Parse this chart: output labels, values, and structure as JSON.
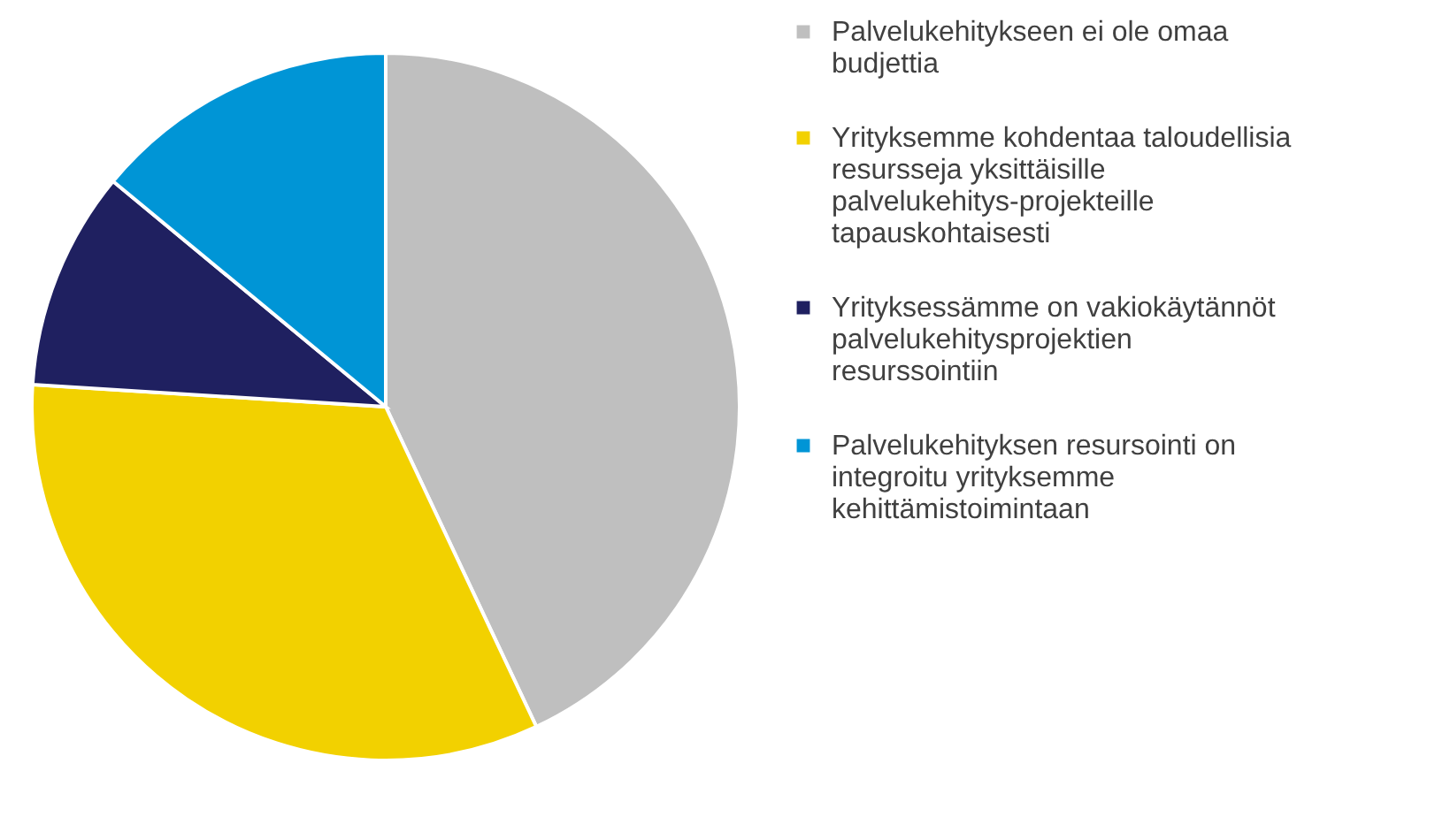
{
  "chart_data": {
    "type": "pie",
    "categories": [
      "Palvelukehitykseen ei ole omaa budjettia",
      "Yrityksemme kohdentaa taloudellisia resursseja yksittäisille palvelukehitys-projekteille tapauskohtaisesti",
      "Yrityksessämme on vakiokäytännöt palvelukehitysprojektien resurssointiin",
      "Palvelukehityksen resursointi on integroitu yrityksemme kehittämistoimintaan"
    ],
    "values": [
      43,
      33,
      10,
      14
    ],
    "colors": [
      "#bfbfbf",
      "#f2d100",
      "#1f2060",
      "#0095d6"
    ],
    "legend": "right"
  }
}
